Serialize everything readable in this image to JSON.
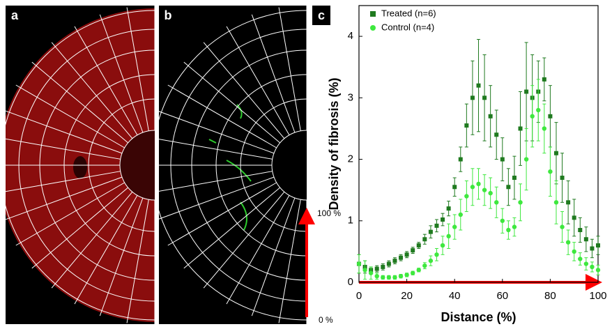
{
  "panel_labels": [
    "a",
    "b",
    "c"
  ],
  "scale_labels": {
    "top": "100 %",
    "bottom": "0 %"
  },
  "chart_data": {
    "type": "scatter",
    "x_label": "Distance (%)",
    "y_label": "Density of fibrosis (%)",
    "x": [
      0,
      2.5,
      5,
      7.5,
      10,
      12.5,
      15,
      17.5,
      20,
      22.5,
      25,
      27.5,
      30,
      32.5,
      35,
      37.5,
      40,
      42.5,
      45,
      47.5,
      50,
      52.5,
      55,
      57.5,
      60,
      62.5,
      65,
      67.5,
      70,
      72.5,
      75,
      77.5,
      80,
      82.5,
      85,
      87.5,
      90,
      92.5,
      95,
      97.5,
      100
    ],
    "series": [
      {
        "name": "Treated (n=6)",
        "color": "#1f7a1f",
        "marker": "square",
        "values": [
          0.3,
          0.25,
          0.2,
          0.22,
          0.25,
          0.3,
          0.35,
          0.4,
          0.45,
          0.52,
          0.6,
          0.7,
          0.82,
          0.92,
          1.02,
          1.2,
          1.55,
          2.0,
          2.55,
          3.0,
          3.2,
          3.0,
          2.7,
          2.4,
          2.0,
          1.55,
          1.7,
          2.5,
          3.1,
          3.0,
          3.1,
          3.3,
          2.7,
          2.1,
          1.7,
          1.3,
          1.05,
          0.85,
          0.7,
          0.55,
          0.6
        ],
        "errors": [
          0.15,
          0.1,
          0.05,
          0.05,
          0.05,
          0.05,
          0.05,
          0.05,
          0.05,
          0.05,
          0.05,
          0.08,
          0.1,
          0.1,
          0.1,
          0.12,
          0.15,
          0.2,
          0.35,
          0.6,
          0.75,
          0.7,
          0.5,
          0.4,
          0.35,
          0.3,
          0.35,
          0.6,
          0.8,
          0.7,
          0.5,
          0.35,
          0.5,
          0.5,
          0.4,
          0.35,
          0.3,
          0.2,
          0.2,
          0.15,
          0.15
        ]
      },
      {
        "name": "Control (n=4)",
        "color": "#3ee83e",
        "marker": "circle",
        "values": [
          0.3,
          0.2,
          0.15,
          0.1,
          0.08,
          0.08,
          0.08,
          0.1,
          0.12,
          0.15,
          0.2,
          0.27,
          0.35,
          0.45,
          0.6,
          0.75,
          0.9,
          1.1,
          1.4,
          1.55,
          1.6,
          1.5,
          1.45,
          1.3,
          1.0,
          0.85,
          0.9,
          1.3,
          2.0,
          2.7,
          2.8,
          2.5,
          1.8,
          1.3,
          0.9,
          0.65,
          0.5,
          0.38,
          0.3,
          0.25,
          0.2
        ],
        "errors": [
          0.15,
          0.15,
          0.1,
          0.05,
          0.03,
          0.03,
          0.03,
          0.03,
          0.03,
          0.03,
          0.03,
          0.05,
          0.08,
          0.1,
          0.15,
          0.2,
          0.2,
          0.25,
          0.25,
          0.3,
          0.25,
          0.25,
          0.25,
          0.25,
          0.2,
          0.15,
          0.15,
          0.3,
          0.5,
          0.5,
          0.5,
          0.4,
          0.4,
          0.35,
          0.25,
          0.2,
          0.15,
          0.1,
          0.1,
          0.08,
          0.08
        ]
      }
    ],
    "xlim": [
      0,
      100
    ],
    "xticks": [
      0,
      20,
      40,
      60,
      80,
      100
    ],
    "ylim": [
      0,
      4.5
    ],
    "yticks": [
      0,
      1,
      2,
      3,
      4
    ],
    "legend": "upper left"
  }
}
